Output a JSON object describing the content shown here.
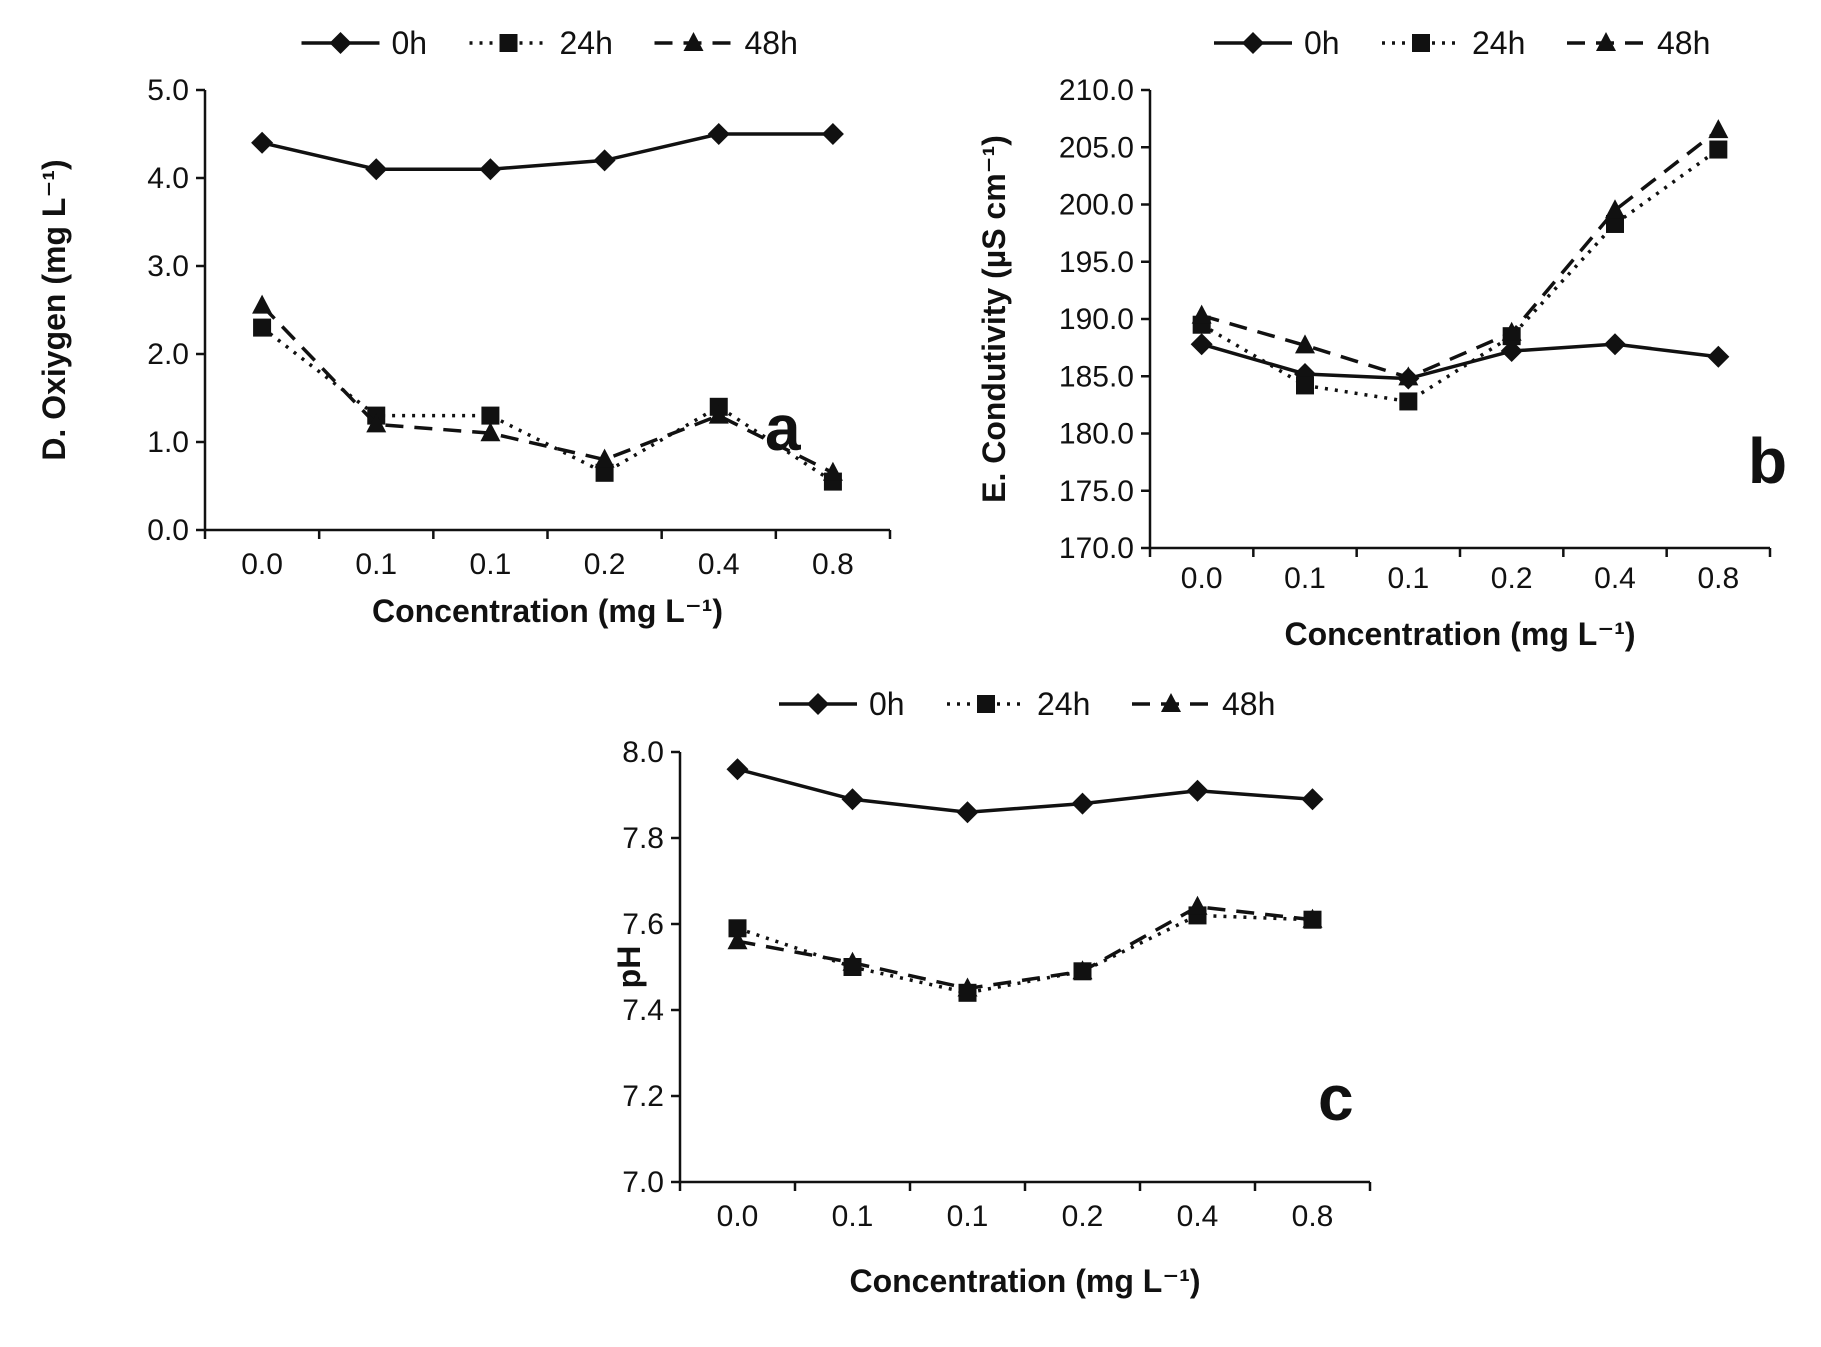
{
  "figure": {
    "background": "#ffffff",
    "ink_color": "#111111"
  },
  "chart_data": [
    {
      "id": "a",
      "type": "line",
      "panel_label": "a",
      "title": "",
      "xlabel": "Concentration (mg L⁻¹)",
      "ylabel": "D. Oxiygen (mg L⁻¹)",
      "categories": [
        "0.0",
        "0.1",
        "0.1",
        "0.2",
        "0.4",
        "0.8"
      ],
      "ylim": [
        0.0,
        5.0
      ],
      "yticks": [
        "0.0",
        "1.0",
        "2.0",
        "3.0",
        "4.0",
        "5.0"
      ],
      "legend_position": "top",
      "grid": false,
      "series": [
        {
          "name": "0h",
          "marker": "diamond",
          "line": "solid",
          "values": [
            4.4,
            4.1,
            4.1,
            4.2,
            4.5,
            4.5
          ]
        },
        {
          "name": "24h",
          "marker": "square",
          "line": "dotted",
          "values": [
            2.3,
            1.3,
            1.3,
            0.65,
            1.4,
            0.55
          ]
        },
        {
          "name": "48h",
          "marker": "triangle",
          "line": "dashed",
          "values": [
            2.55,
            1.2,
            1.1,
            0.8,
            1.3,
            0.65
          ]
        }
      ]
    },
    {
      "id": "b",
      "type": "line",
      "panel_label": "b",
      "title": "",
      "xlabel": "Concentration (mg L⁻¹)",
      "ylabel": "E. Condutivity (µS cm⁻¹)",
      "categories": [
        "0.0",
        "0.1",
        "0.1",
        "0.2",
        "0.4",
        "0.8"
      ],
      "ylim": [
        170.0,
        210.0
      ],
      "yticks": [
        "170.0",
        "175.0",
        "180.0",
        "185.0",
        "190.0",
        "195.0",
        "200.0",
        "205.0",
        "210.0"
      ],
      "legend_position": "top",
      "grid": false,
      "series": [
        {
          "name": "0h",
          "marker": "diamond",
          "line": "solid",
          "values": [
            187.8,
            185.2,
            184.8,
            187.2,
            187.8,
            186.7
          ]
        },
        {
          "name": "24h",
          "marker": "square",
          "line": "dotted",
          "values": [
            189.5,
            184.2,
            182.8,
            188.5,
            198.3,
            204.8
          ]
        },
        {
          "name": "48h",
          "marker": "triangle",
          "line": "dashed",
          "values": [
            190.3,
            187.7,
            184.9,
            188.8,
            199.5,
            206.5
          ]
        }
      ]
    },
    {
      "id": "c",
      "type": "line",
      "panel_label": "c",
      "title": "",
      "xlabel": "Concentration (mg L⁻¹)",
      "ylabel": "pH",
      "categories": [
        "0.0",
        "0.1",
        "0.1",
        "0.2",
        "0.4",
        "0.8"
      ],
      "ylim": [
        7.0,
        8.0
      ],
      "yticks": [
        "7.0",
        "7.2",
        "7.4",
        "7.6",
        "7.8",
        "8.0"
      ],
      "legend_position": "top",
      "grid": false,
      "series": [
        {
          "name": "0h",
          "marker": "diamond",
          "line": "solid",
          "values": [
            7.96,
            7.89,
            7.86,
            7.88,
            7.91,
            7.89
          ]
        },
        {
          "name": "24h",
          "marker": "square",
          "line": "dotted",
          "values": [
            7.59,
            7.5,
            7.44,
            7.49,
            7.62,
            7.61
          ]
        },
        {
          "name": "48h",
          "marker": "triangle",
          "line": "dashed",
          "values": [
            7.56,
            7.51,
            7.45,
            7.49,
            7.64,
            7.61
          ]
        }
      ]
    }
  ]
}
